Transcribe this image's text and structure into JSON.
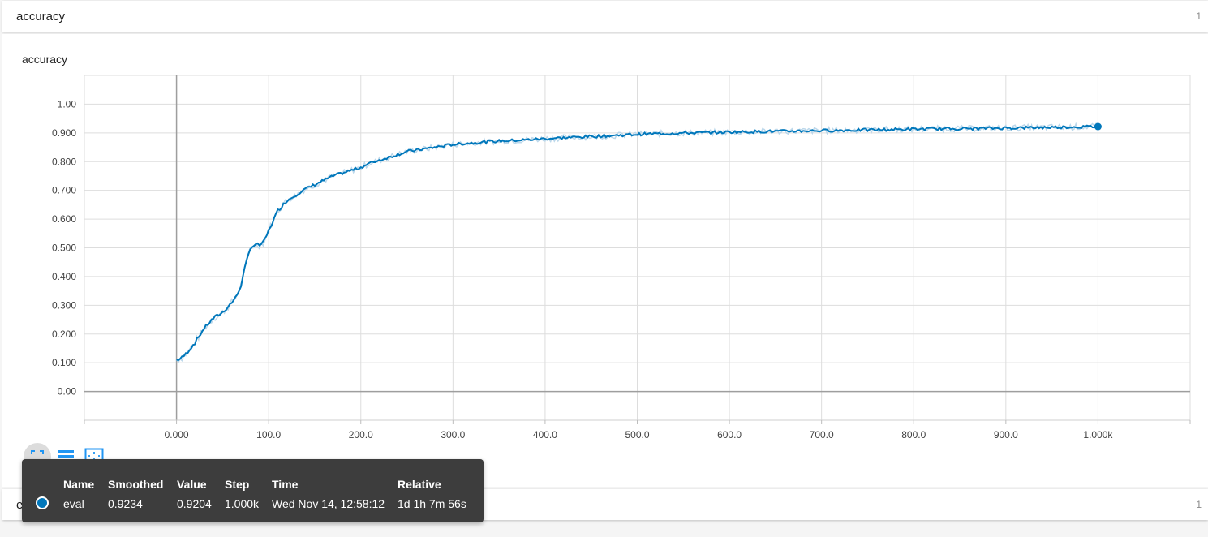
{
  "card1": {
    "title": "accuracy",
    "count": "1"
  },
  "chart_panel": {
    "title": "accuracy"
  },
  "card2": {
    "title": "enqueue_input",
    "count": "1"
  },
  "colors": {
    "series": "#0077bb",
    "raw": "#bcd8eb",
    "grid": "#dddddd",
    "axis": "#9e9e9e"
  },
  "toolbar": {
    "icons": [
      "fullscreen-icon",
      "list-icon",
      "fit-domain-icon"
    ]
  },
  "tooltip": {
    "headers": {
      "name": "Name",
      "smoothed": "Smoothed",
      "value": "Value",
      "step": "Step",
      "time": "Time",
      "relative": "Relative"
    },
    "row": {
      "name": "eval",
      "smoothed": "0.9234",
      "value": "0.9204",
      "step": "1.000k",
      "time": "Wed Nov 14, 12:58:12",
      "relative": "1d 1h 7m 56s"
    }
  },
  "chart_data": {
    "type": "line",
    "title": "accuracy",
    "xlabel": "",
    "ylabel": "",
    "xlim": [
      -100,
      1100
    ],
    "ylim": [
      -0.1,
      1.1
    ],
    "x_ticks": [
      0,
      100,
      200,
      300,
      400,
      500,
      600,
      700,
      800,
      900,
      1000
    ],
    "x_tick_labels": [
      "0.000",
      "100.0",
      "200.0",
      "300.0",
      "400.0",
      "500.0",
      "600.0",
      "700.0",
      "800.0",
      "900.0",
      "1.000k"
    ],
    "y_ticks": [
      0,
      0.1,
      0.2,
      0.3,
      0.4,
      0.5,
      0.6,
      0.7,
      0.8,
      0.9,
      1.0
    ],
    "y_tick_labels": [
      "0.00",
      "0.100",
      "0.200",
      "0.300",
      "0.400",
      "0.500",
      "0.600",
      "0.700",
      "0.800",
      "0.900",
      "1.00"
    ],
    "grid": true,
    "series": [
      {
        "name": "eval",
        "x": [
          0,
          5,
          10,
          20,
          30,
          40,
          50,
          60,
          65,
          70,
          75,
          80,
          85,
          90,
          95,
          100,
          110,
          120,
          130,
          140,
          150,
          160,
          170,
          180,
          190,
          200,
          210,
          220,
          230,
          240,
          250,
          260,
          270,
          280,
          290,
          300,
          320,
          340,
          360,
          380,
          400,
          420,
          440,
          460,
          480,
          500,
          520,
          540,
          560,
          580,
          600,
          620,
          640,
          660,
          680,
          700,
          720,
          740,
          760,
          780,
          800,
          820,
          840,
          860,
          880,
          900,
          920,
          940,
          960,
          980,
          1000
        ],
        "values": [
          0.11,
          0.115,
          0.13,
          0.17,
          0.22,
          0.255,
          0.275,
          0.31,
          0.33,
          0.37,
          0.44,
          0.5,
          0.51,
          0.51,
          0.52,
          0.56,
          0.63,
          0.665,
          0.685,
          0.705,
          0.72,
          0.735,
          0.75,
          0.76,
          0.77,
          0.78,
          0.795,
          0.805,
          0.815,
          0.825,
          0.835,
          0.84,
          0.845,
          0.85,
          0.855,
          0.86,
          0.865,
          0.87,
          0.873,
          0.876,
          0.88,
          0.883,
          0.886,
          0.889,
          0.892,
          0.895,
          0.897,
          0.899,
          0.9,
          0.901,
          0.903,
          0.904,
          0.905,
          0.906,
          0.907,
          0.908,
          0.909,
          0.91,
          0.911,
          0.912,
          0.913,
          0.914,
          0.915,
          0.915,
          0.916,
          0.917,
          0.918,
          0.919,
          0.92,
          0.921,
          0.922
        ]
      }
    ]
  }
}
